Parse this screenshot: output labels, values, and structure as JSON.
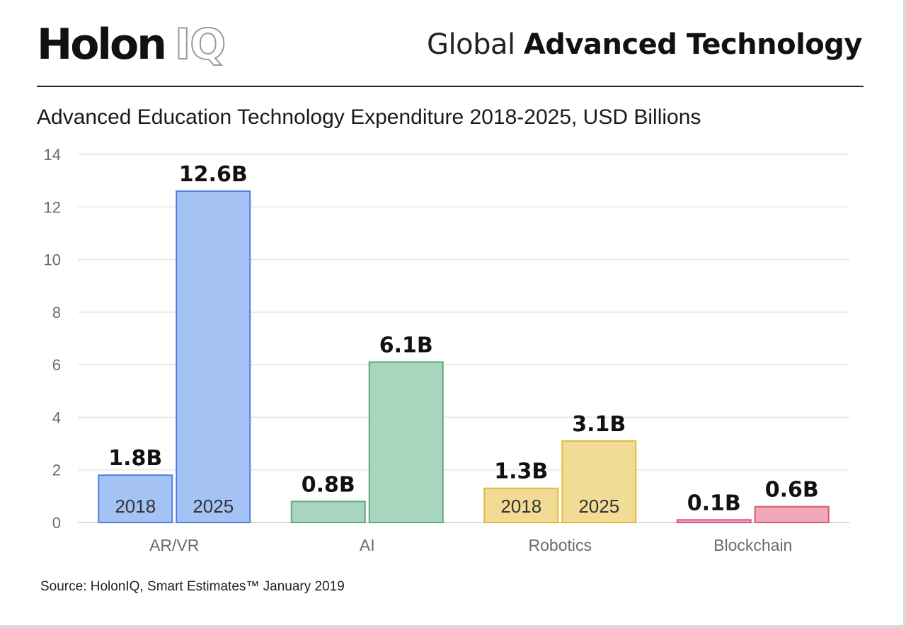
{
  "header": {
    "logo_main": "Holon",
    "logo_accent": "IQ",
    "title_light": "Global",
    "title_bold": "Advanced Technology"
  },
  "chart_data": {
    "type": "bar",
    "title": "Advanced Education Technology Expenditure 2018-2025, USD Billions",
    "xlabel": "",
    "ylabel": "",
    "ylim": [
      0,
      14
    ],
    "yticks": [
      0,
      2,
      4,
      6,
      8,
      10,
      12,
      14
    ],
    "grid": true,
    "categories": [
      "AR/VR",
      "AI",
      "Robotics",
      "Blockchain"
    ],
    "series": [
      {
        "name": "2018",
        "values": [
          1.8,
          0.8,
          1.3,
          0.1
        ],
        "labels": [
          "1.8B",
          "0.8B",
          "1.3B",
          "0.1B"
        ],
        "in_bar_labels": [
          "2018",
          "",
          "2018",
          ""
        ]
      },
      {
        "name": "2025",
        "values": [
          12.6,
          6.1,
          3.1,
          0.6
        ],
        "labels": [
          "12.6B",
          "6.1B",
          "3.1B",
          "0.6B"
        ],
        "in_bar_labels": [
          "2025",
          "",
          "2025",
          ""
        ]
      }
    ],
    "category_colors": [
      {
        "fill": "#a4c2f4",
        "stroke": "#4f7fe0"
      },
      {
        "fill": "#a8d5bd",
        "stroke": "#5aa97f"
      },
      {
        "fill": "#f2dc95",
        "stroke": "#e0bb3a"
      },
      {
        "fill": "#f0a8b8",
        "stroke": "#d9577a"
      }
    ]
  },
  "footer": {
    "source": "Source: HolonIQ, Smart Estimates™ January 2019"
  }
}
